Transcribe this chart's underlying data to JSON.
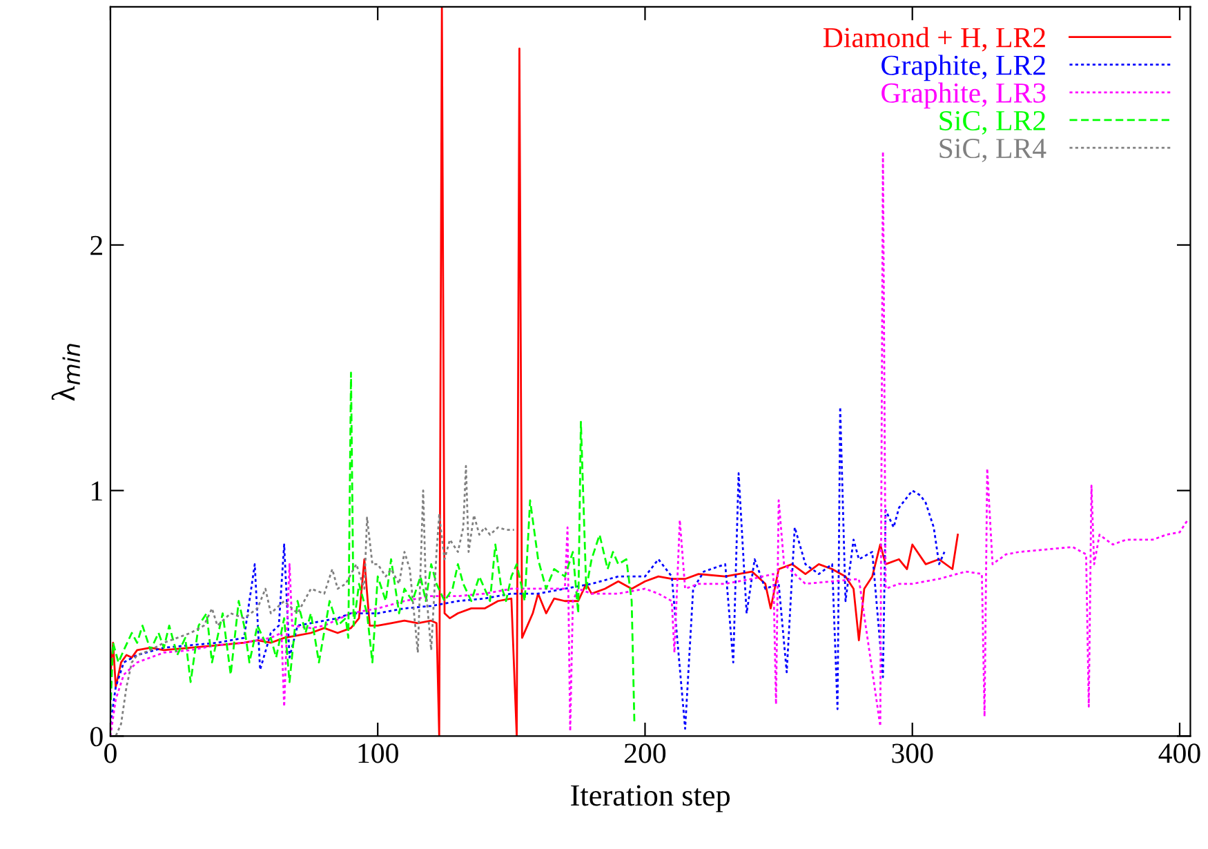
{
  "chart_data": {
    "type": "line",
    "xlabel": "Iteration step",
    "ylabel": "λ$_{min}$",
    "xlim": [
      0,
      404
    ],
    "ylim": [
      0,
      2.97
    ],
    "xticks": [
      0,
      100,
      200,
      300,
      400
    ],
    "yticks": [
      0,
      1,
      2
    ],
    "grid": false,
    "legend": "top right",
    "marker": "none",
    "series": [
      {
        "name": "Diamond + H, LR2",
        "color": "#ff0000",
        "line_style": "solid",
        "x": [
          0,
          1,
          2,
          4,
          6,
          8,
          10,
          15,
          20,
          30,
          40,
          50,
          55,
          60,
          65,
          70,
          75,
          80,
          85,
          90,
          93,
          95,
          97,
          100,
          105,
          110,
          115,
          120,
          122,
          123,
          124,
          125,
          127,
          130,
          135,
          140,
          145,
          150,
          152,
          153,
          154,
          156,
          158,
          160,
          163,
          166,
          170,
          175,
          178,
          180,
          185,
          190,
          195,
          200,
          205,
          210,
          215,
          220,
          230,
          240,
          245,
          247,
          250,
          255,
          260,
          265,
          270,
          275,
          278,
          280,
          282,
          285,
          288,
          290,
          295,
          298,
          300,
          305,
          310,
          315,
          317
        ],
        "values": [
          0.25,
          0.38,
          0.2,
          0.3,
          0.33,
          0.32,
          0.35,
          0.36,
          0.35,
          0.36,
          0.37,
          0.38,
          0.39,
          0.38,
          0.4,
          0.41,
          0.42,
          0.44,
          0.42,
          0.44,
          0.48,
          0.72,
          0.45,
          0.45,
          0.46,
          0.47,
          0.46,
          0.47,
          0.46,
          0,
          2.97,
          0.5,
          0.48,
          0.5,
          0.52,
          0.52,
          0.55,
          0.56,
          0,
          2.8,
          0.4,
          0.45,
          0.5,
          0.58,
          0.5,
          0.56,
          0.55,
          0.55,
          0.62,
          0.58,
          0.6,
          0.63,
          0.6,
          0.63,
          0.65,
          0.64,
          0.64,
          0.66,
          0.65,
          0.67,
          0.62,
          0.52,
          0.68,
          0.7,
          0.66,
          0.7,
          0.68,
          0.65,
          0.6,
          0.39,
          0.6,
          0.65,
          0.78,
          0.7,
          0.72,
          0.68,
          0.78,
          0.7,
          0.72,
          0.68,
          0.82
        ]
      },
      {
        "name": "Graphite, LR2",
        "color": "#0000ff",
        "line_style": "dotted",
        "x": [
          0,
          2,
          5,
          10,
          20,
          30,
          40,
          50,
          54,
          56,
          60,
          63,
          65,
          67,
          70,
          75,
          80,
          85,
          90,
          100,
          110,
          120,
          130,
          140,
          150,
          160,
          170,
          180,
          190,
          200,
          205,
          210,
          215,
          218,
          222,
          230,
          233,
          235,
          238,
          241,
          245,
          250,
          253,
          256,
          260,
          265,
          270,
          272,
          273,
          275,
          278,
          280,
          285,
          289,
          290,
          293,
          295,
          300,
          303,
          305,
          308,
          310,
          312
        ],
        "values": [
          0.05,
          0.2,
          0.3,
          0.33,
          0.36,
          0.37,
          0.38,
          0.4,
          0.7,
          0.27,
          0.42,
          0.45,
          0.78,
          0.32,
          0.45,
          0.46,
          0.47,
          0.48,
          0.5,
          0.5,
          0.52,
          0.53,
          0.55,
          0.56,
          0.58,
          0.58,
          0.6,
          0.62,
          0.65,
          0.65,
          0.72,
          0.65,
          0.03,
          0.6,
          0.67,
          0.7,
          0.3,
          1.07,
          0.5,
          0.72,
          0.6,
          0.62,
          0.26,
          0.85,
          0.7,
          0.66,
          0.7,
          0.11,
          1.34,
          0.55,
          0.8,
          0.72,
          0.75,
          0.24,
          0.92,
          0.85,
          0.93,
          1.0,
          0.98,
          0.95,
          0.85,
          0.7,
          0.75
        ]
      },
      {
        "name": "Graphite, LR3",
        "color": "#ff00ff",
        "line_style": "dotted",
        "x": [
          0,
          2,
          5,
          10,
          20,
          30,
          40,
          50,
          60,
          64,
          65,
          66,
          67,
          68,
          75,
          80,
          90,
          100,
          110,
          120,
          130,
          140,
          150,
          160,
          170,
          171,
          172,
          173,
          175,
          180,
          190,
          200,
          205,
          210,
          211,
          213,
          215,
          220,
          230,
          240,
          248,
          249,
          250,
          252,
          260,
          270,
          280,
          288,
          289,
          290,
          295,
          300,
          310,
          320,
          326,
          327,
          328,
          330,
          335,
          340,
          350,
          360,
          365,
          366,
          367,
          368,
          370,
          375,
          380,
          390,
          395,
          400,
          403
        ],
        "values": [
          0.0,
          0.15,
          0.25,
          0.3,
          0.34,
          0.35,
          0.37,
          0.38,
          0.4,
          0.42,
          0.12,
          0.42,
          0.7,
          0.45,
          0.44,
          0.45,
          0.5,
          0.52,
          0.55,
          0.57,
          0.57,
          0.58,
          0.6,
          0.6,
          0.6,
          0.85,
          0.02,
          0.55,
          0.6,
          0.58,
          0.58,
          0.6,
          0.58,
          0.55,
          0.34,
          0.88,
          0.6,
          0.62,
          0.62,
          0.64,
          0.66,
          0.13,
          0.96,
          0.7,
          0.62,
          0.63,
          0.64,
          0.04,
          2.38,
          0.6,
          0.62,
          0.62,
          0.64,
          0.67,
          0.66,
          0.08,
          1.09,
          0.7,
          0.74,
          0.75,
          0.76,
          0.77,
          0.74,
          0.12,
          1.02,
          0.7,
          0.82,
          0.78,
          0.8,
          0.8,
          0.82,
          0.83,
          0.88
        ]
      },
      {
        "name": "SiC, LR2",
        "color": "#00ff00",
        "line_style": "dashed",
        "x": [
          0,
          1,
          3,
          5,
          8,
          10,
          12,
          15,
          18,
          20,
          22,
          25,
          28,
          30,
          33,
          36,
          38,
          42,
          45,
          48,
          50,
          52,
          55,
          58,
          60,
          62,
          65,
          67,
          70,
          73,
          75,
          78,
          82,
          85,
          88,
          89,
          90,
          91,
          93,
          96,
          98,
          100,
          103,
          105,
          108,
          110,
          113,
          116,
          118,
          120,
          122,
          125,
          128,
          130,
          132,
          135,
          138,
          140,
          142,
          144,
          146,
          148,
          150,
          152,
          155,
          157,
          160,
          163,
          166,
          170,
          173,
          175,
          176,
          178,
          180,
          183,
          186,
          188,
          190,
          193,
          195,
          196
        ],
        "values": [
          0.1,
          0.38,
          0.3,
          0.35,
          0.42,
          0.38,
          0.45,
          0.35,
          0.42,
          0.36,
          0.45,
          0.33,
          0.4,
          0.22,
          0.45,
          0.5,
          0.3,
          0.5,
          0.25,
          0.55,
          0.45,
          0.3,
          0.45,
          0.38,
          0.4,
          0.32,
          0.48,
          0.22,
          0.55,
          0.42,
          0.5,
          0.3,
          0.55,
          0.45,
          0.48,
          0.4,
          1.48,
          0.45,
          0.62,
          0.5,
          0.3,
          0.65,
          0.55,
          0.72,
          0.5,
          0.6,
          0.55,
          0.65,
          0.55,
          0.7,
          0.62,
          0.55,
          0.6,
          0.7,
          0.62,
          0.55,
          0.65,
          0.6,
          0.55,
          0.78,
          0.62,
          0.55,
          0.65,
          0.7,
          0.55,
          0.96,
          0.72,
          0.6,
          0.68,
          0.65,
          0.75,
          0.5,
          1.28,
          0.6,
          0.72,
          0.82,
          0.68,
          0.75,
          0.7,
          0.72,
          0.55,
          0.06
        ]
      },
      {
        "name": "SiC, LR4",
        "color": "#808080",
        "line_style": "dotted",
        "x": [
          0,
          2,
          4,
          6,
          8,
          10,
          15,
          20,
          25,
          30,
          35,
          38,
          40,
          45,
          50,
          55,
          58,
          60,
          65,
          70,
          75,
          80,
          83,
          85,
          88,
          92,
          95,
          96,
          98,
          100,
          103,
          105,
          108,
          110,
          112,
          115,
          117,
          118,
          120,
          122,
          123,
          125,
          127,
          130,
          132,
          133,
          134,
          136,
          138,
          140,
          142,
          145,
          148,
          151
        ],
        "values": [
          0.0,
          0.0,
          0.05,
          0.2,
          0.3,
          0.33,
          0.35,
          0.38,
          0.4,
          0.42,
          0.45,
          0.52,
          0.45,
          0.5,
          0.48,
          0.52,
          0.6,
          0.5,
          0.55,
          0.5,
          0.6,
          0.58,
          0.68,
          0.6,
          0.62,
          0.7,
          0.6,
          0.89,
          0.7,
          0.7,
          0.65,
          0.68,
          0.62,
          0.75,
          0.68,
          0.34,
          1.0,
          0.6,
          0.35,
          0.75,
          0.9,
          0.72,
          0.8,
          0.75,
          0.85,
          1.1,
          0.75,
          0.9,
          0.82,
          0.85,
          0.82,
          0.85,
          0.84,
          0.84
        ]
      }
    ]
  }
}
